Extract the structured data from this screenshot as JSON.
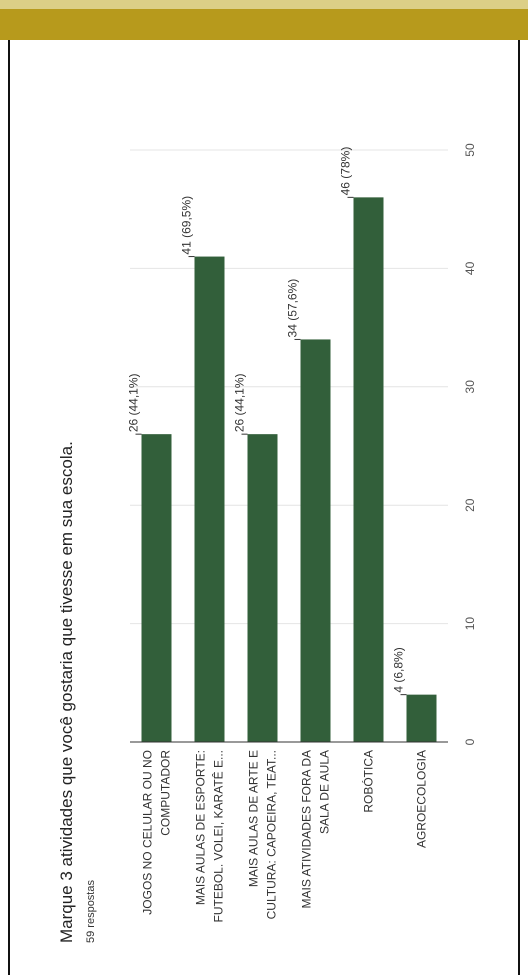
{
  "chart_data": {
    "type": "bar",
    "orientation": "horizontal",
    "rotated": "ccw-90",
    "title": "Marque 3 atividades que você gostaria que tivesse em sua escola.",
    "subtitle": "59 respostas",
    "categories": [
      [
        "JOGOS NO CELULAR OU NO",
        "COMPUTADOR"
      ],
      [
        "MAIS AULAS DE ESPORTE:",
        "FUTEBOL. VOLEI, KARATÊ E..."
      ],
      [
        "MAIS AULAS DE ARTE E",
        "CULTURA: CAPOEIRA, TEAT..."
      ],
      [
        "MAIS ATIVIDADES FORA DA",
        "SALA DE AULA"
      ],
      [
        "ROBÓTICA"
      ],
      [
        "AGROECOLOGIA"
      ]
    ],
    "values": [
      26,
      41,
      26,
      34,
      46,
      4
    ],
    "data_labels": [
      "26 (44,1%)",
      "41 (69,5%)",
      "26 (44,1%)",
      "34 (57,6%)",
      "46 (78%)",
      "4 (6,8%)"
    ],
    "xlim": [
      0,
      50
    ],
    "ticks": [
      0,
      10,
      20,
      30,
      40,
      50
    ],
    "tick_labels": [
      "0",
      "10",
      "20",
      "30",
      "40",
      "50"
    ],
    "grid": true,
    "bar_color": "#325f3a"
  },
  "colors": {
    "header_band": "#b79a1c",
    "header_stripe": "#dccf86",
    "grid": "#e4e4e4",
    "text": "#333333"
  }
}
